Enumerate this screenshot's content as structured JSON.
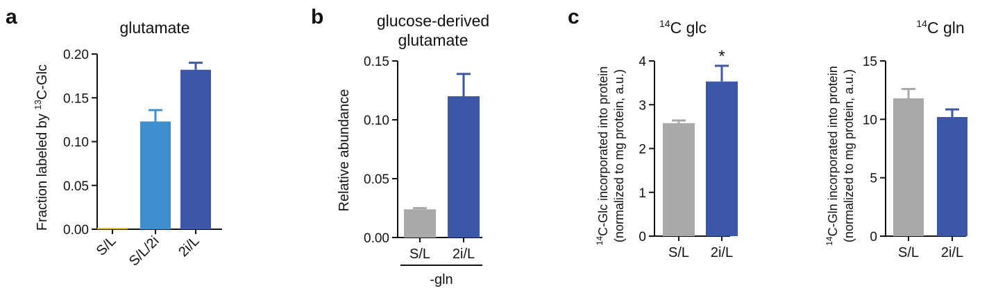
{
  "panels": {
    "a": "a",
    "b": "b",
    "c": "c"
  },
  "colors": {
    "gray": "#a9a9a9",
    "light_blue": "#3f8fce",
    "dark_blue": "#3d57a8"
  },
  "chart_data": [
    {
      "type": "bar",
      "panel": "a",
      "title": "glutamate",
      "ylabel_pre": "Fraction labeled by ",
      "ylabel_sup": "13",
      "ylabel_post": "C-Glc",
      "xlabel": "",
      "categories": [
        "S/L",
        "S/L/2i",
        "2i/L"
      ],
      "values": [
        0.0,
        0.123,
        0.182
      ],
      "errors": [
        0.0,
        0.013,
        0.008
      ],
      "colors": [
        "#e8c200",
        "#3f8fce",
        "#3d57a8"
      ],
      "ylim": [
        0,
        0.2
      ],
      "yticks": [
        "0.00",
        "0.05",
        "0.10",
        "0.15",
        "0.20"
      ],
      "rotated_labels": true
    },
    {
      "type": "bar",
      "panel": "b",
      "title_lines": [
        "glucose-derived",
        "glutamate"
      ],
      "ylabel": "Relative abundance",
      "group_label": "-gln",
      "categories": [
        "S/L",
        "2i/L"
      ],
      "values": [
        0.024,
        0.12
      ],
      "errors": [
        0.001,
        0.019
      ],
      "colors": [
        "#a9a9a9",
        "#3d57a8"
      ],
      "ylim": [
        0,
        0.15
      ],
      "yticks": [
        "0.00",
        "0.05",
        "0.10",
        "0.15"
      ]
    },
    {
      "type": "bar",
      "panel": "c",
      "title_sup": "14",
      "title_post": "C glc",
      "ylabel_line1_sup": "14",
      "ylabel_line1_post": "C-Glc incorporated into protein",
      "ylabel_line2": "(normalized to mg protein, a.u.)",
      "categories": [
        "S/L",
        "2i/L"
      ],
      "values": [
        2.58,
        3.53
      ],
      "errors": [
        0.06,
        0.36
      ],
      "colors": [
        "#a9a9a9",
        "#3d57a8"
      ],
      "annotations": [
        "",
        "*"
      ],
      "ylim": [
        0,
        4
      ],
      "yticks": [
        "0",
        "1",
        "2",
        "3",
        "4"
      ]
    },
    {
      "type": "bar",
      "panel": "c",
      "title_sup": "14",
      "title_post": "C gln",
      "ylabel_line1_sup": "14",
      "ylabel_line1_post": "C-Gln incorporated into protein",
      "ylabel_line2": "(normalized to mg protein, a.u.)",
      "categories": [
        "S/L",
        "2i/L"
      ],
      "values": [
        11.8,
        10.2
      ],
      "errors": [
        0.8,
        0.65
      ],
      "colors": [
        "#a9a9a9",
        "#3d57a8"
      ],
      "ylim": [
        0,
        15
      ],
      "yticks": [
        "0",
        "5",
        "10",
        "15"
      ]
    }
  ]
}
